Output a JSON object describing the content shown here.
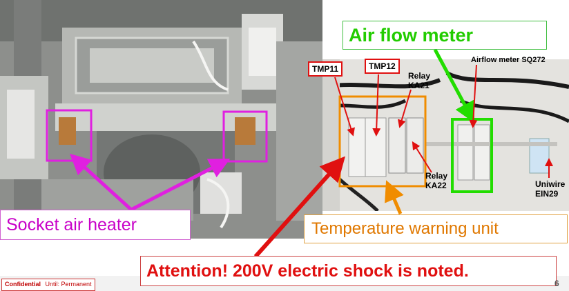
{
  "labels": {
    "air_flow_meter": "Air flow meter",
    "tmp11": "TMP11",
    "tmp12": "TMP12",
    "relay_ka21": [
      "Relay",
      "KA21"
    ],
    "relay_ka22": [
      "Relay",
      "KA22"
    ],
    "airflow_meter_sq272": "Airflow meter SQ272",
    "uniwire": [
      "Uniwire",
      "EIN29"
    ],
    "socket_air_heater": "Socket air heater",
    "temperature_warning_unit": "Temperature warning unit",
    "attention": "Attention!  200V electric shock is noted."
  },
  "footer": {
    "confidential": "Confidential",
    "until": "Until: Permanent",
    "page_number": "6"
  },
  "colors": {
    "magenta": "#e020e0",
    "green": "#22dd00",
    "orange": "#f08c00",
    "red": "#e01010"
  }
}
